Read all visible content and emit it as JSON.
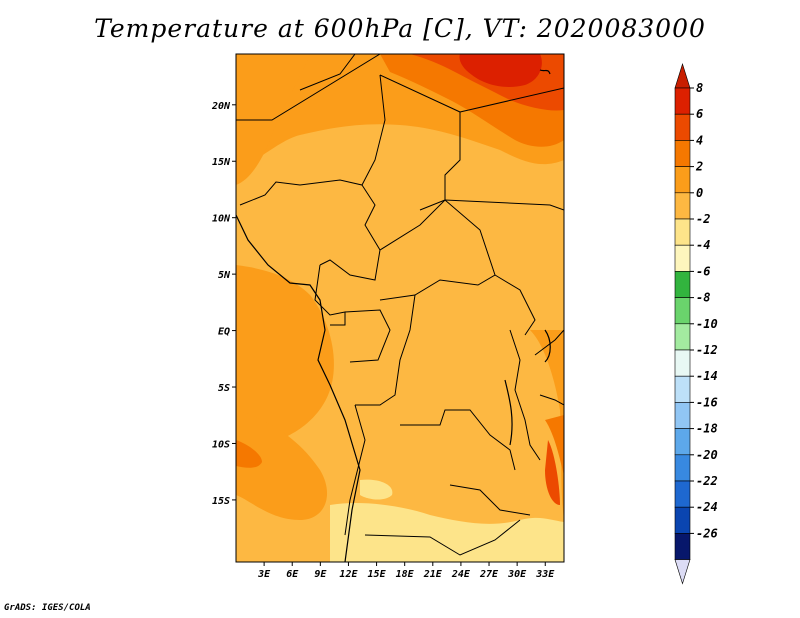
{
  "title": "Temperature at 600hPa [C], VT: 2020083000",
  "footer": "GrADS: IGES/COLA",
  "map": {
    "lon_labels": [
      "3E",
      "6E",
      "9E",
      "12E",
      "15E",
      "18E",
      "21E",
      "24E",
      "27E",
      "30E",
      "33E"
    ],
    "lon_values": [
      3,
      6,
      9,
      12,
      15,
      18,
      21,
      24,
      27,
      30,
      33
    ],
    "lat_labels": [
      "20N",
      "15N",
      "10N",
      "5N",
      "EQ",
      "5S",
      "10S",
      "15S"
    ],
    "lat_values": [
      20,
      15,
      10,
      5,
      0,
      -5,
      -10,
      -15
    ]
  },
  "colorbar": {
    "labels": [
      "8",
      "6",
      "4",
      "2",
      "0",
      "-2",
      "-4",
      "-6",
      "-8",
      "-10",
      "-12",
      "-14",
      "-16",
      "-18",
      "-20",
      "-22",
      "-24",
      "-26"
    ],
    "colors": [
      "#dc2000",
      "#ec4a00",
      "#f57800",
      "#fb9d1a",
      "#fdb842",
      "#fde48a",
      "#fef6bd",
      "#32b43e",
      "#6ad46c",
      "#a3eba0",
      "#e8f8f4",
      "#bde0f8",
      "#91c6f4",
      "#5da8ea",
      "#3889e0",
      "#1e68d0",
      "#0a45b0",
      "#07176b"
    ],
    "lower_triangle_color": "#dcdcf5",
    "upper_triangle_color": "#c81e00"
  }
}
